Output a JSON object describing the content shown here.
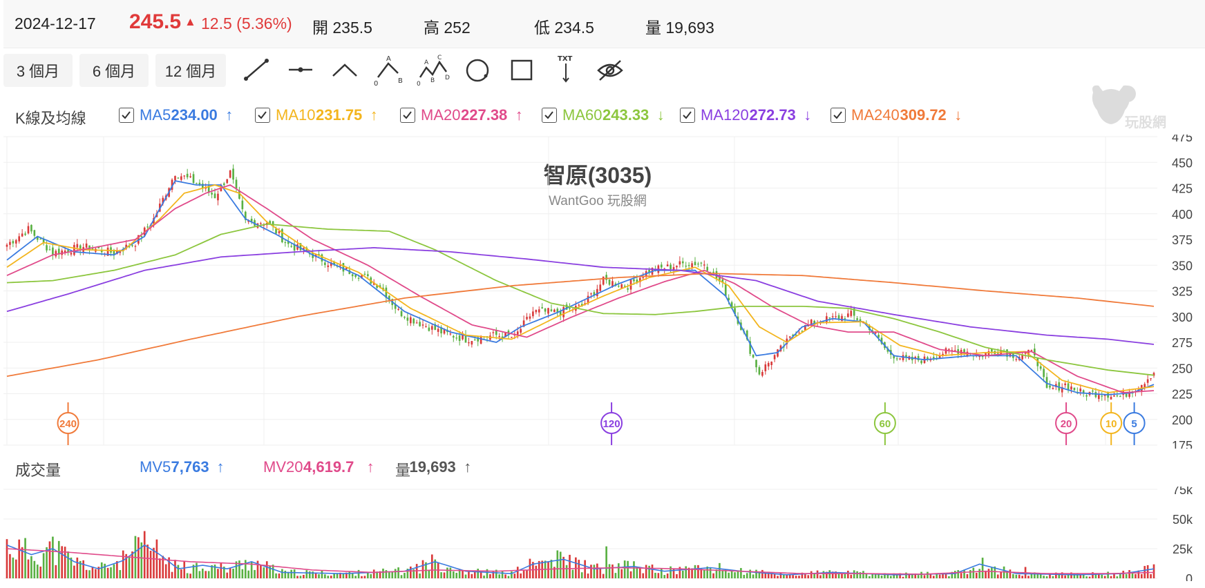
{
  "quote": {
    "date": "2024-12-17",
    "price": "245.5",
    "change_arrow": "▲",
    "change": "12.5 (5.36%)",
    "open": "開 235.5",
    "high": "高 252",
    "low": "低 234.5",
    "volume": "量 19,693"
  },
  "toolbar": {
    "ranges": [
      "3 個月",
      "6 個月",
      "12 個月"
    ],
    "tools": [
      "line-tool-icon",
      "horizontal-line-tool-icon",
      "angle-tool-icon",
      "abcd-pattern-tool-icon",
      "abc-wave-tool-icon",
      "circle-tool-icon",
      "rectangle-tool-icon",
      "text-note-tool-icon",
      "hide-eye-icon"
    ],
    "tool_labels": {
      "ab_a": "A",
      "ab_b": "B",
      "ab_0": "0",
      "wave_a": "A",
      "wave_b": "B",
      "wave_c": "C",
      "wave_d": "D",
      "wave_0": "0",
      "txt": "TXT"
    }
  },
  "ma_legend": {
    "title": "K線及均線",
    "items": [
      {
        "label": "MA5",
        "value": "234.00",
        "arrow": "↑",
        "color": "#3a7be0"
      },
      {
        "label": "MA10",
        "value": "231.75",
        "arrow": "↑",
        "color": "#f3b51e"
      },
      {
        "label": "MA20",
        "value": "227.38",
        "arrow": "↑",
        "color": "#e04a8a"
      },
      {
        "label": "MA60",
        "value": "243.33",
        "arrow": "↓",
        "color": "#8cc63e"
      },
      {
        "label": "MA120",
        "value": "272.73",
        "arrow": "↓",
        "color": "#8a3fe0"
      },
      {
        "label": "MA240",
        "value": "309.72",
        "arrow": "↓",
        "color": "#f07a3a"
      }
    ]
  },
  "vol_legend": {
    "title": "成交量",
    "items": [
      {
        "label": "MV5",
        "value": "7,763",
        "arrow": "↑",
        "color": "#3a7be0"
      },
      {
        "label": "MV20",
        "value": "4,619.7",
        "arrow": "↑",
        "color": "#e04a8a"
      },
      {
        "label": "量",
        "value": "19,693",
        "arrow": "↑",
        "color": "#555555"
      }
    ]
  },
  "watermark_text": "玩股網",
  "chart_data": {
    "type": "candlestick",
    "title": "智原(3035)",
    "subtitle": "WantGoo 玩股網",
    "price_axis": {
      "ticks": [
        "475",
        "450",
        "425",
        "400",
        "375",
        "350",
        "325",
        "300",
        "275",
        "250",
        "225",
        "200",
        "175"
      ],
      "ylim": [
        175,
        475
      ]
    },
    "volume_axis": {
      "ticks": [
        "75k",
        "50k",
        "25k",
        "0"
      ],
      "ylim": [
        0,
        75000
      ]
    },
    "ma_markers": [
      {
        "label": "240",
        "color": "#f07a3a",
        "pos": 0.056
      },
      {
        "label": "120",
        "color": "#8a3fe0",
        "pos": 0.527
      },
      {
        "label": "60",
        "color": "#8cc63e",
        "pos": 0.764
      },
      {
        "label": "20",
        "color": "#e04a8a",
        "pos": 0.921
      },
      {
        "label": "10",
        "color": "#f3b51e",
        "pos": 0.96
      },
      {
        "label": "5",
        "color": "#3a7be0",
        "pos": 0.98
      }
    ],
    "price_keypoints": [
      [
        0,
        370
      ],
      [
        7,
        385
      ],
      [
        15,
        362
      ],
      [
        25,
        368
      ],
      [
        35,
        362
      ],
      [
        42,
        372
      ],
      [
        48,
        395
      ],
      [
        55,
        440
      ],
      [
        62,
        430
      ],
      [
        68,
        417
      ],
      [
        73,
        440
      ],
      [
        78,
        392
      ],
      [
        85,
        392
      ],
      [
        92,
        370
      ],
      [
        100,
        360
      ],
      [
        108,
        348
      ],
      [
        116,
        340
      ],
      [
        122,
        330
      ],
      [
        128,
        305
      ],
      [
        134,
        295
      ],
      [
        142,
        285
      ],
      [
        150,
        278
      ],
      [
        160,
        282
      ],
      [
        166,
        280
      ],
      [
        172,
        305
      ],
      [
        180,
        304
      ],
      [
        188,
        310
      ],
      [
        195,
        335
      ],
      [
        203,
        330
      ],
      [
        210,
        345
      ],
      [
        216,
        348
      ],
      [
        222,
        352
      ],
      [
        228,
        352
      ],
      [
        234,
        330
      ],
      [
        240,
        290
      ],
      [
        246,
        245
      ],
      [
        252,
        265
      ],
      [
        258,
        285
      ],
      [
        264,
        295
      ],
      [
        270,
        298
      ],
      [
        276,
        302
      ],
      [
        282,
        290
      ],
      [
        288,
        265
      ],
      [
        294,
        258
      ],
      [
        300,
        258
      ],
      [
        306,
        265
      ],
      [
        312,
        268
      ],
      [
        318,
        262
      ],
      [
        324,
        268
      ],
      [
        330,
        262
      ],
      [
        336,
        265
      ],
      [
        340,
        228
      ],
      [
        346,
        234
      ],
      [
        352,
        225
      ],
      [
        358,
        226
      ],
      [
        364,
        222
      ],
      [
        370,
        232
      ],
      [
        375,
        246
      ]
    ],
    "ma_series": [
      {
        "name": "MA5",
        "color": "#3a7be0",
        "points": [
          [
            0,
            355
          ],
          [
            10,
            378
          ],
          [
            22,
            363
          ],
          [
            35,
            360
          ],
          [
            45,
            378
          ],
          [
            55,
            432
          ],
          [
            62,
            428
          ],
          [
            70,
            428
          ],
          [
            78,
            395
          ],
          [
            88,
            380
          ],
          [
            100,
            360
          ],
          [
            115,
            340
          ],
          [
            130,
            305
          ],
          [
            145,
            285
          ],
          [
            160,
            275
          ],
          [
            168,
            290
          ],
          [
            180,
            304
          ],
          [
            190,
            318
          ],
          [
            200,
            332
          ],
          [
            212,
            345
          ],
          [
            225,
            345
          ],
          [
            235,
            320
          ],
          [
            245,
            262
          ],
          [
            252,
            265
          ],
          [
            260,
            290
          ],
          [
            270,
            298
          ],
          [
            280,
            295
          ],
          [
            290,
            262
          ],
          [
            300,
            258
          ],
          [
            315,
            262
          ],
          [
            330,
            262
          ],
          [
            340,
            235
          ],
          [
            350,
            226
          ],
          [
            360,
            224
          ],
          [
            368,
            226
          ],
          [
            375,
            234
          ]
        ]
      },
      {
        "name": "MA10",
        "color": "#f3b51e",
        "points": [
          [
            0,
            348
          ],
          [
            12,
            372
          ],
          [
            25,
            365
          ],
          [
            38,
            364
          ],
          [
            50,
            395
          ],
          [
            58,
            420
          ],
          [
            68,
            428
          ],
          [
            76,
            420
          ],
          [
            85,
            392
          ],
          [
            100,
            362
          ],
          [
            115,
            343
          ],
          [
            132,
            308
          ],
          [
            150,
            282
          ],
          [
            165,
            278
          ],
          [
            180,
            300
          ],
          [
            195,
            320
          ],
          [
            210,
            338
          ],
          [
            225,
            348
          ],
          [
            236,
            330
          ],
          [
            246,
            290
          ],
          [
            255,
            275
          ],
          [
            265,
            294
          ],
          [
            280,
            295
          ],
          [
            292,
            272
          ],
          [
            305,
            262
          ],
          [
            320,
            265
          ],
          [
            333,
            266
          ],
          [
            345,
            238
          ],
          [
            360,
            226
          ],
          [
            375,
            232
          ]
        ]
      },
      {
        "name": "MA20",
        "color": "#e04a8a",
        "points": [
          [
            0,
            340
          ],
          [
            15,
            360
          ],
          [
            30,
            368
          ],
          [
            42,
            375
          ],
          [
            55,
            405
          ],
          [
            65,
            420
          ],
          [
            73,
            428
          ],
          [
            85,
            405
          ],
          [
            100,
            375
          ],
          [
            118,
            350
          ],
          [
            135,
            320
          ],
          [
            152,
            292
          ],
          [
            170,
            280
          ],
          [
            185,
            300
          ],
          [
            200,
            318
          ],
          [
            215,
            334
          ],
          [
            228,
            345
          ],
          [
            238,
            332
          ],
          [
            250,
            310
          ],
          [
            262,
            292
          ],
          [
            275,
            285
          ],
          [
            290,
            285
          ],
          [
            305,
            268
          ],
          [
            320,
            262
          ],
          [
            335,
            266
          ],
          [
            350,
            242
          ],
          [
            365,
            226
          ],
          [
            375,
            228
          ]
        ]
      },
      {
        "name": "MA60",
        "color": "#8cc63e",
        "points": [
          [
            0,
            333
          ],
          [
            15,
            335
          ],
          [
            35,
            345
          ],
          [
            55,
            360
          ],
          [
            70,
            380
          ],
          [
            85,
            390
          ],
          [
            105,
            385
          ],
          [
            125,
            383
          ],
          [
            140,
            365
          ],
          [
            160,
            335
          ],
          [
            178,
            313
          ],
          [
            195,
            303
          ],
          [
            212,
            302
          ],
          [
            225,
            305
          ],
          [
            240,
            310
          ],
          [
            260,
            310
          ],
          [
            275,
            308
          ],
          [
            290,
            298
          ],
          [
            305,
            285
          ],
          [
            320,
            270
          ],
          [
            340,
            258
          ],
          [
            360,
            248
          ],
          [
            375,
            243
          ]
        ]
      },
      {
        "name": "MA120",
        "color": "#8a3fe0",
        "points": [
          [
            0,
            305
          ],
          [
            20,
            322
          ],
          [
            45,
            345
          ],
          [
            70,
            358
          ],
          [
            95,
            363
          ],
          [
            120,
            367
          ],
          [
            145,
            363
          ],
          [
            170,
            356
          ],
          [
            195,
            348
          ],
          [
            220,
            345
          ],
          [
            245,
            335
          ],
          [
            265,
            315
          ],
          [
            290,
            302
          ],
          [
            315,
            290
          ],
          [
            340,
            282
          ],
          [
            360,
            278
          ],
          [
            375,
            273
          ]
        ]
      },
      {
        "name": "MA240",
        "color": "#f07a3a",
        "points": [
          [
            0,
            242
          ],
          [
            30,
            258
          ],
          [
            60,
            278
          ],
          [
            95,
            300
          ],
          [
            130,
            318
          ],
          [
            165,
            330
          ],
          [
            200,
            338
          ],
          [
            230,
            342
          ],
          [
            260,
            340
          ],
          [
            290,
            333
          ],
          [
            320,
            325
          ],
          [
            350,
            318
          ],
          [
            375,
            310
          ]
        ]
      }
    ],
    "volume_mv_series": [
      {
        "name": "MV5",
        "color": "#3a7be0",
        "points": [
          [
            0,
            28000
          ],
          [
            8,
            20000
          ],
          [
            15,
            25000
          ],
          [
            22,
            14000
          ],
          [
            30,
            8000
          ],
          [
            38,
            15000
          ],
          [
            45,
            28000
          ],
          [
            50,
            20000
          ],
          [
            56,
            8000
          ],
          [
            64,
            11000
          ],
          [
            72,
            8000
          ],
          [
            80,
            14000
          ],
          [
            90,
            5000
          ],
          [
            110,
            4000
          ],
          [
            130,
            6000
          ],
          [
            140,
            14000
          ],
          [
            150,
            6000
          ],
          [
            165,
            4000
          ],
          [
            172,
            12000
          ],
          [
            182,
            16000
          ],
          [
            192,
            8000
          ],
          [
            205,
            10000
          ],
          [
            215,
            6000
          ],
          [
            230,
            9000
          ],
          [
            240,
            6000
          ],
          [
            255,
            3000
          ],
          [
            270,
            5000
          ],
          [
            290,
            3000
          ],
          [
            310,
            4000
          ],
          [
            318,
            12000
          ],
          [
            330,
            4000
          ],
          [
            350,
            3000
          ],
          [
            365,
            4000
          ],
          [
            375,
            8000
          ]
        ]
      },
      {
        "name": "MV20",
        "color": "#e04a8a",
        "points": [
          [
            0,
            25000
          ],
          [
            20,
            22000
          ],
          [
            40,
            18000
          ],
          [
            60,
            14000
          ],
          [
            80,
            12000
          ],
          [
            100,
            7000
          ],
          [
            120,
            5000
          ],
          [
            140,
            7000
          ],
          [
            160,
            6000
          ],
          [
            180,
            8000
          ],
          [
            200,
            9000
          ],
          [
            220,
            8000
          ],
          [
            240,
            6000
          ],
          [
            260,
            4000
          ],
          [
            280,
            4000
          ],
          [
            300,
            3500
          ],
          [
            320,
            6000
          ],
          [
            340,
            4000
          ],
          [
            360,
            4000
          ],
          [
            375,
            5000
          ]
        ]
      }
    ]
  }
}
